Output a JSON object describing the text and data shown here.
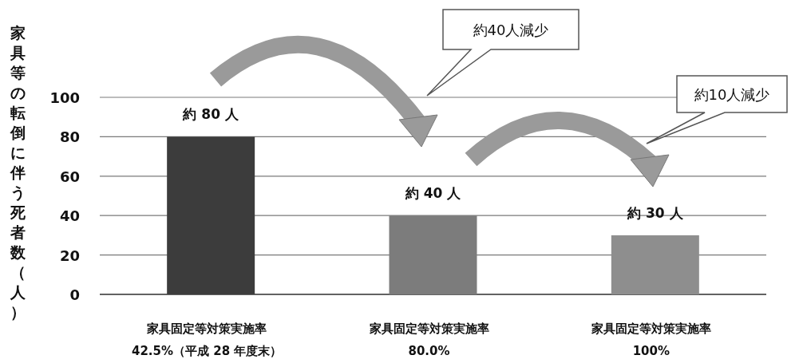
{
  "chart_data": {
    "type": "bar",
    "ylabel": "家具等の転倒に伴う死者数（人）",
    "categories": [
      "家具固定等対策実施率\n42.5%（平成 28 年度末）",
      "家具固定等対策実施率\n80.0%",
      "家具固定等対策実施率\n100%"
    ],
    "values": [
      80,
      40,
      30
    ],
    "colors": [
      "#3c3c3c",
      "#7c7c7c",
      "#8e8e8e"
    ],
    "value_labels": [
      "約 80 人",
      "約 40 人",
      "約 30 人"
    ],
    "ylim": [
      0,
      100
    ],
    "yticks": [
      0,
      20,
      40,
      60,
      80,
      100
    ],
    "grid": "y",
    "annotations": [
      "約40人減少",
      "約10人減少"
    ]
  }
}
